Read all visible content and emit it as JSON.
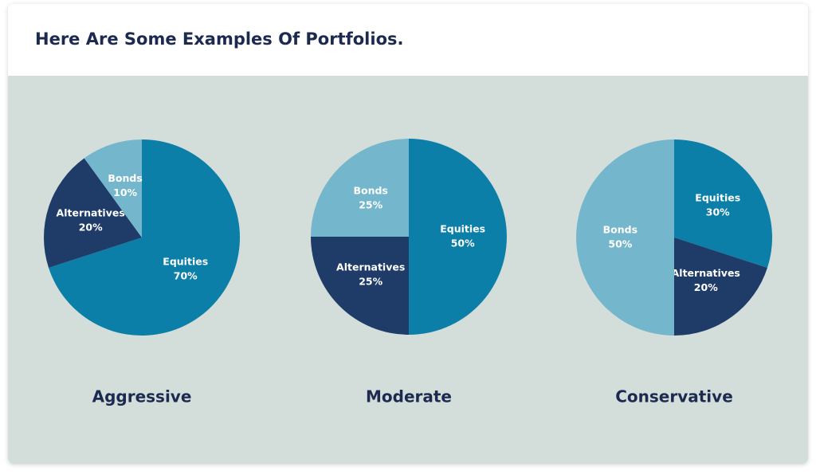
{
  "title": "Here Are Some Examples Of Portfolios.",
  "chart_data": [
    {
      "type": "pie",
      "title": "Aggressive",
      "categories": [
        "Equities",
        "Alternatives",
        "Bonds"
      ],
      "values": [
        70,
        20,
        10
      ],
      "value_labels": [
        "70%",
        "20%",
        "10%"
      ],
      "colors": [
        "#0b7fa7",
        "#1f3c69",
        "#74b6cc"
      ]
    },
    {
      "type": "pie",
      "title": "Moderate",
      "categories": [
        "Equities",
        "Alternatives",
        "Bonds"
      ],
      "values": [
        50,
        25,
        25
      ],
      "value_labels": [
        "50%",
        "25%",
        "25%"
      ],
      "colors": [
        "#0b7fa7",
        "#1f3c69",
        "#74b6cc"
      ]
    },
    {
      "type": "pie",
      "title": "Conservative",
      "categories": [
        "Equities",
        "Alternatives",
        "Bonds"
      ],
      "values": [
        30,
        20,
        50
      ],
      "value_labels": [
        "30%",
        "20%",
        "50%"
      ],
      "colors": [
        "#0b7fa7",
        "#1f3c69",
        "#74b6cc"
      ]
    }
  ]
}
